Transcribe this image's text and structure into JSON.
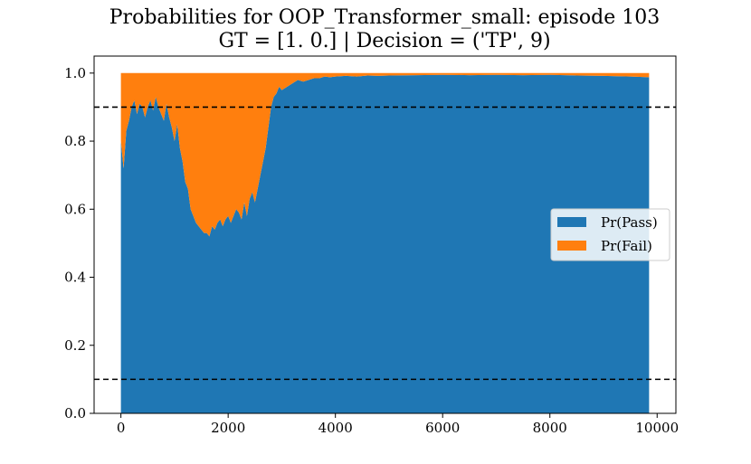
{
  "chart_data": {
    "type": "area",
    "stacked": true,
    "title": "Probabilities for OOP_Transformer_small: episode 103",
    "subtitle": "GT = [1. 0.] | Decision = ('TP', 9)",
    "xlabel": "",
    "ylabel": "",
    "xlim": [
      -500,
      10350
    ],
    "ylim": [
      0.0,
      1.05
    ],
    "xticks": [
      0,
      2000,
      4000,
      6000,
      8000,
      10000
    ],
    "xtick_labels": [
      "0",
      "2000",
      "4000",
      "6000",
      "8000",
      "10000"
    ],
    "yticks": [
      0.0,
      0.2,
      0.4,
      0.6,
      0.8,
      1.0
    ],
    "ytick_labels": [
      "0.0",
      "0.2",
      "0.4",
      "0.6",
      "0.8",
      "1.0"
    ],
    "grid": false,
    "legend_position": "center-right",
    "thresholds": [
      0.9,
      0.1
    ],
    "x": [
      0,
      50,
      100,
      150,
      200,
      250,
      300,
      350,
      400,
      450,
      500,
      550,
      600,
      650,
      700,
      750,
      800,
      850,
      900,
      950,
      1000,
      1050,
      1100,
      1150,
      1200,
      1250,
      1300,
      1350,
      1400,
      1450,
      1500,
      1550,
      1600,
      1650,
      1700,
      1750,
      1800,
      1850,
      1900,
      1950,
      2000,
      2050,
      2100,
      2150,
      2200,
      2250,
      2300,
      2350,
      2400,
      2450,
      2500,
      2550,
      2600,
      2650,
      2700,
      2750,
      2800,
      2850,
      2900,
      2950,
      3000,
      3100,
      3200,
      3300,
      3400,
      3500,
      3600,
      3700,
      3800,
      3900,
      4000,
      4200,
      4400,
      4600,
      4800,
      5000,
      5500,
      6000,
      6500,
      7000,
      7500,
      8000,
      8500,
      9000,
      9500,
      9850
    ],
    "series": [
      {
        "name": "Pr(Pass)",
        "color": "#1f77b4",
        "values": [
          0.8,
          0.72,
          0.83,
          0.86,
          0.9,
          0.92,
          0.88,
          0.91,
          0.9,
          0.87,
          0.9,
          0.92,
          0.89,
          0.93,
          0.9,
          0.88,
          0.86,
          0.91,
          0.87,
          0.84,
          0.8,
          0.85,
          0.78,
          0.74,
          0.68,
          0.66,
          0.6,
          0.58,
          0.56,
          0.55,
          0.54,
          0.53,
          0.53,
          0.52,
          0.55,
          0.54,
          0.56,
          0.57,
          0.55,
          0.57,
          0.58,
          0.56,
          0.58,
          0.6,
          0.59,
          0.57,
          0.62,
          0.58,
          0.63,
          0.65,
          0.62,
          0.66,
          0.7,
          0.74,
          0.78,
          0.84,
          0.9,
          0.93,
          0.94,
          0.96,
          0.95,
          0.96,
          0.97,
          0.98,
          0.975,
          0.98,
          0.985,
          0.985,
          0.99,
          0.988,
          0.99,
          0.992,
          0.99,
          0.993,
          0.992,
          0.993,
          0.994,
          0.995,
          0.994,
          0.995,
          0.994,
          0.995,
          0.993,
          0.992,
          0.99,
          0.988
        ]
      },
      {
        "name": "Pr(Fail)",
        "color": "#ff7f0e",
        "values": [
          0.2,
          0.28,
          0.17,
          0.14,
          0.1,
          0.08,
          0.12,
          0.09,
          0.1,
          0.13,
          0.1,
          0.08,
          0.11,
          0.07,
          0.1,
          0.12,
          0.14,
          0.09,
          0.13,
          0.16,
          0.2,
          0.15,
          0.22,
          0.26,
          0.32,
          0.34,
          0.4,
          0.42,
          0.44,
          0.45,
          0.46,
          0.47,
          0.47,
          0.48,
          0.45,
          0.46,
          0.44,
          0.43,
          0.45,
          0.43,
          0.42,
          0.44,
          0.42,
          0.4,
          0.41,
          0.43,
          0.38,
          0.42,
          0.37,
          0.35,
          0.38,
          0.34,
          0.3,
          0.26,
          0.22,
          0.16,
          0.1,
          0.07,
          0.06,
          0.04,
          0.05,
          0.04,
          0.03,
          0.02,
          0.025,
          0.02,
          0.015,
          0.015,
          0.01,
          0.012,
          0.01,
          0.008,
          0.01,
          0.007,
          0.008,
          0.007,
          0.006,
          0.005,
          0.006,
          0.005,
          0.006,
          0.005,
          0.007,
          0.008,
          0.01,
          0.012
        ]
      }
    ]
  }
}
